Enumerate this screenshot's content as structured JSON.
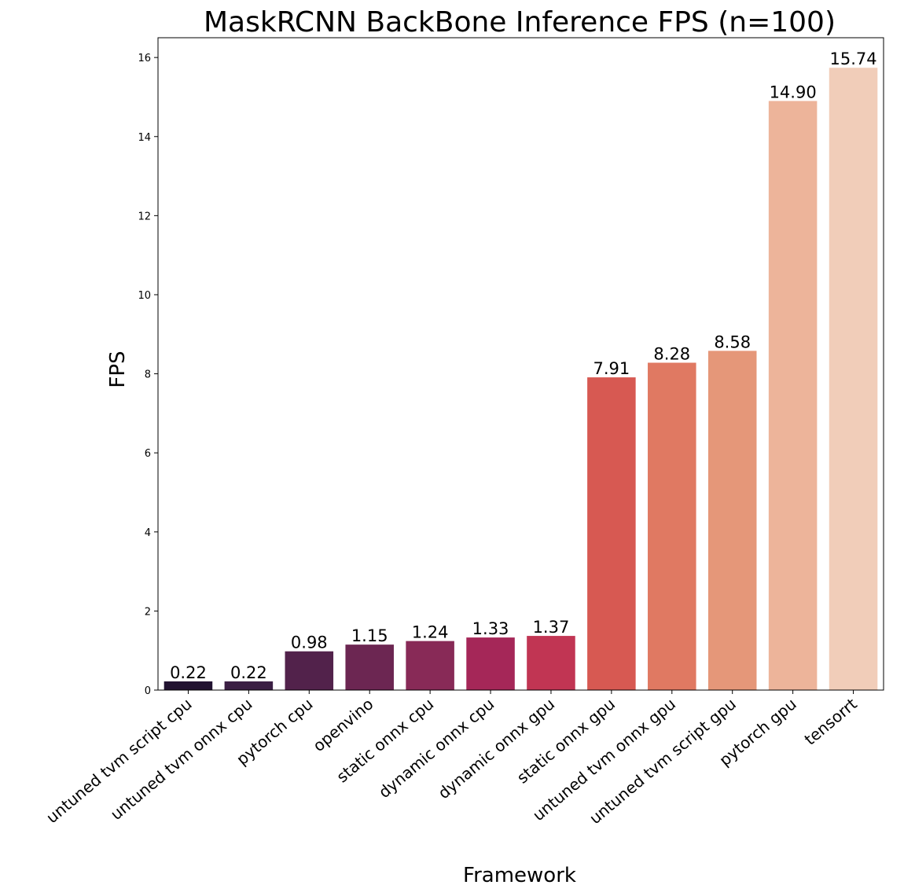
{
  "chart_data": {
    "type": "bar",
    "title": "MaskRCNN BackBone Inference FPS (n=100)",
    "xlabel": "Framework",
    "ylabel": "FPS",
    "categories": [
      "untuned tvm script cpu",
      "untuned tvm onnx cpu",
      "pytorch cpu",
      "openvino",
      "static onnx cpu",
      "dynamic onnx cpu",
      "dynamic onnx gpu",
      "static onnx gpu",
      "untuned tvm onnx gpu",
      "untuned tvm script gpu",
      "pytorch gpu",
      "tensorrt"
    ],
    "values": [
      0.22,
      0.22,
      0.98,
      1.15,
      1.24,
      1.33,
      1.37,
      7.91,
      8.28,
      8.58,
      14.9,
      15.74
    ],
    "data_labels": [
      "0.22",
      "0.22",
      "0.98",
      "1.15",
      "1.24",
      "1.33",
      "1.37",
      "7.91",
      "8.28",
      "8.58",
      "14.90",
      "15.74"
    ],
    "colors": [
      "#221331",
      "#3b1f44",
      "#52224b",
      "#6c2652",
      "#882a57",
      "#a52758",
      "#c13553",
      "#d75952",
      "#e07962",
      "#e59779",
      "#edb49a",
      "#f1cdb9"
    ],
    "yticks": [
      0,
      2,
      4,
      6,
      8,
      10,
      12,
      14,
      16
    ],
    "ytick_labels": [
      "0",
      "2",
      "4",
      "6",
      "8",
      "10",
      "12",
      "14",
      "16"
    ],
    "ylim": [
      0,
      16.5
    ],
    "grid": false,
    "legend": "none"
  }
}
